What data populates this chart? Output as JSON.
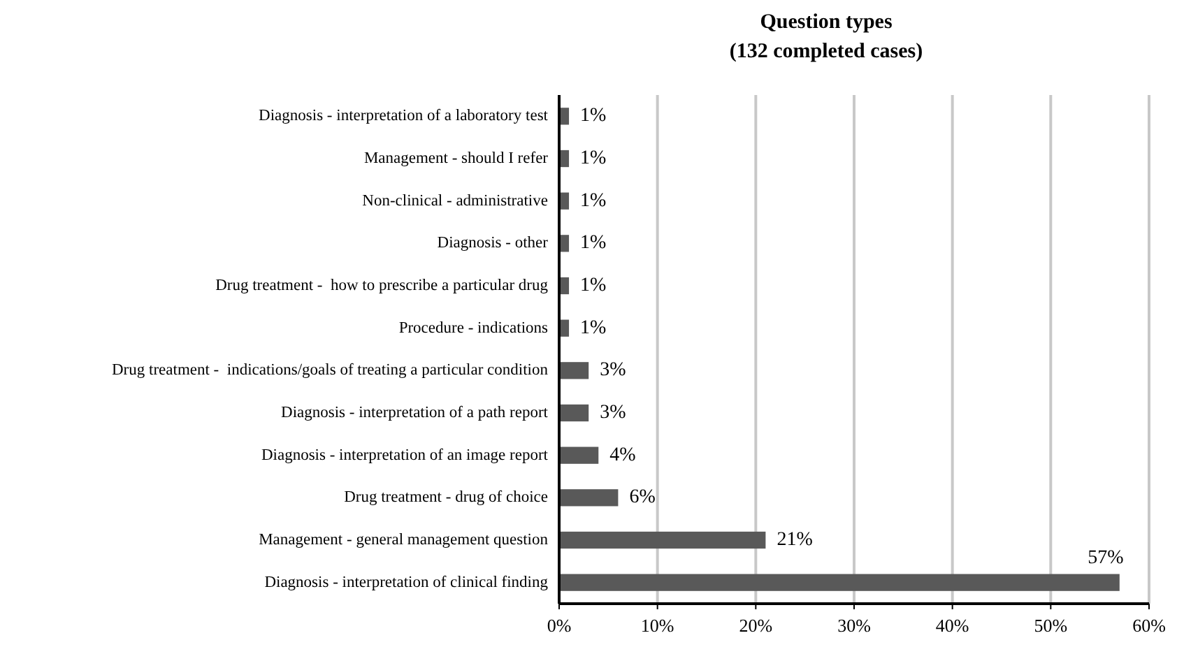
{
  "chart_data": {
    "type": "bar",
    "orientation": "horizontal",
    "title": "Question types",
    "subtitle": "(132 completed cases)",
    "categories": [
      "Diagnosis - interpretation of a laboratory test",
      "Management - should I refer",
      "Non-clinical - administrative",
      "Diagnosis - other",
      "Drug treatment -  how to prescribe a particular drug",
      "Procedure - indications",
      "Drug treatment -  indications/goals of treating a particular condition",
      "Diagnosis - interpretation of a path report",
      "Diagnosis - interpretation of an image report",
      "Drug treatment - drug of choice",
      "Management - general management question",
      "Diagnosis - interpretation of clinical finding"
    ],
    "values": [
      1,
      1,
      1,
      1,
      1,
      1,
      3,
      3,
      4,
      6,
      21,
      57
    ],
    "value_labels": [
      "1%",
      "1%",
      "1%",
      "1%",
      "1%",
      "1%",
      "3%",
      "3%",
      "4%",
      "6%",
      "21%",
      "57%"
    ],
    "color": "#595959",
    "xlim": [
      0,
      60
    ],
    "xticks": [
      {
        "value": 0,
        "label": "0%"
      },
      {
        "value": 10,
        "label": "10%"
      },
      {
        "value": 20,
        "label": "20%"
      },
      {
        "value": 30,
        "label": "30%"
      },
      {
        "value": 40,
        "label": "40%"
      },
      {
        "value": 50,
        "label": "50%"
      },
      {
        "value": 60,
        "label": "60%"
      }
    ],
    "grid": "x"
  }
}
